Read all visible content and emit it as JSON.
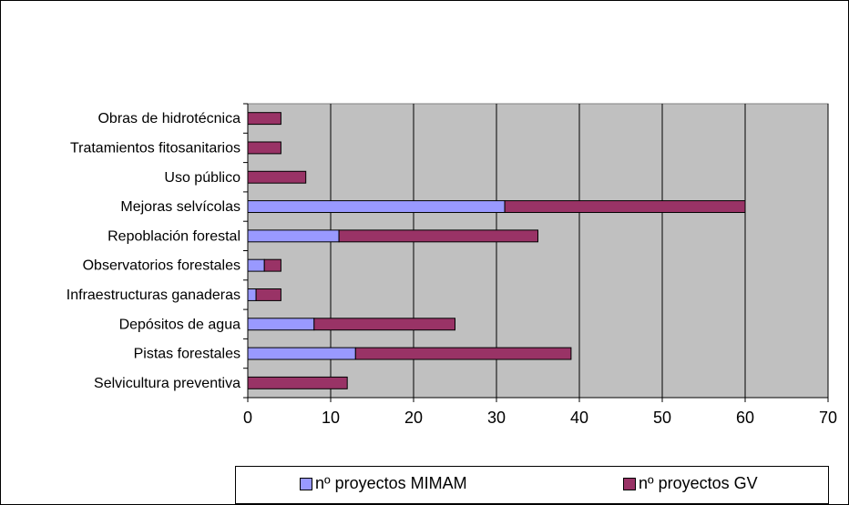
{
  "chart_data": {
    "type": "bar",
    "orientation": "horizontal",
    "stacked": true,
    "categories": [
      "Obras de hidrotécnica",
      "Tratamientos fitosanitarios",
      "Uso público",
      "Mejoras selvícolas",
      "Repoblación forestal",
      "Observatorios forestales",
      "Infraestructuras ganaderas",
      "Depósitos de agua",
      "Pistas forestales",
      "Selvicultura preventiva"
    ],
    "series": [
      {
        "name": "nº proyectos MIMAM",
        "color": "#9999ff",
        "values": [
          0,
          0,
          0,
          31,
          11,
          2,
          1,
          8,
          13,
          0
        ]
      },
      {
        "name": "nº proyectos GV",
        "color": "#993366",
        "values": [
          4,
          4,
          7,
          29,
          24,
          2,
          3,
          17,
          26,
          12
        ]
      }
    ],
    "xlim": [
      0,
      70
    ],
    "xticks": [
      0,
      10,
      20,
      30,
      40,
      50,
      60,
      70
    ],
    "grid": "vertical",
    "plot_background": "#c0c0c0",
    "legend_position": "bottom"
  }
}
